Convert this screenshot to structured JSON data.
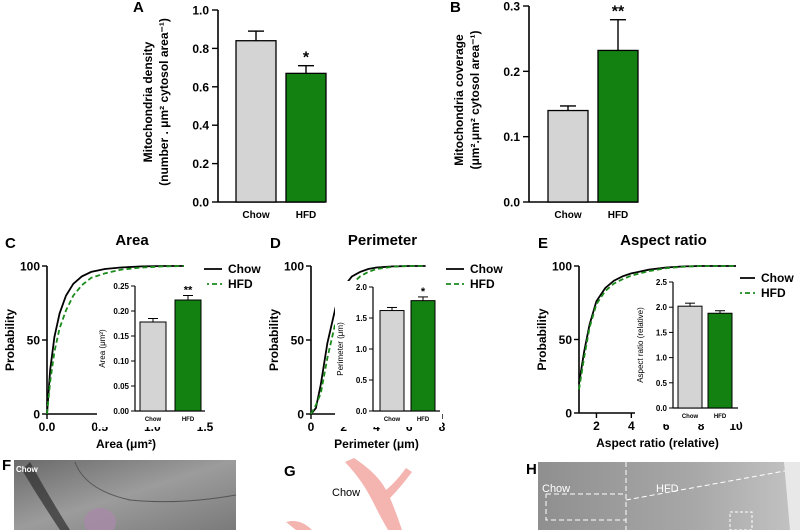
{
  "colors": {
    "chow": "#d4d4d4",
    "hfd": "#128112",
    "line_chow": "#000000",
    "line_hfd": "#1a8a1a"
  },
  "chart_data": [
    {
      "id": "A",
      "panel_label": "A",
      "type": "bar",
      "title": "",
      "categories": [
        "Chow",
        "HFD"
      ],
      "values": [
        0.84,
        0.67
      ],
      "errors": [
        0.05,
        0.04
      ],
      "significance": [
        "",
        "*"
      ],
      "ylabel_line1": "Mitochondria density",
      "ylabel_line2": "(number . μm² cytosol area⁻¹)",
      "xlabel": "",
      "ylim": [
        0,
        1.0
      ],
      "y_ticks": [
        "0.0",
        "0.2",
        "0.4",
        "0.6",
        "0.8",
        "1.0"
      ]
    },
    {
      "id": "B",
      "panel_label": "B",
      "type": "bar",
      "title": "",
      "categories": [
        "Chow",
        "HFD"
      ],
      "values": [
        0.14,
        0.232
      ],
      "errors": [
        0.007,
        0.047
      ],
      "significance": [
        "",
        "**"
      ],
      "ylabel_line1": "Mitochondria coverage",
      "ylabel_line2": "(μm².μm² cytosol area⁻¹)",
      "xlabel": "",
      "ylim": [
        0,
        0.3
      ],
      "y_ticks": [
        "0.0",
        "0.1",
        "0.2",
        "0.3"
      ]
    },
    {
      "id": "C",
      "panel_label": "C",
      "type": "line",
      "title": "Area",
      "xlabel": "Area (μm²)",
      "ylabel": "Probability",
      "xlim": [
        0,
        1.5
      ],
      "ylim": [
        0,
        100
      ],
      "x_ticks": [
        "0.0",
        "0.5",
        "1.0",
        "1.5"
      ],
      "y_ticks": [
        "0",
        "50",
        "100"
      ],
      "legend": "top-right",
      "series": [
        {
          "name": "Chow",
          "x": [
            0,
            0.03,
            0.07,
            0.12,
            0.18,
            0.25,
            0.33,
            0.42,
            0.55,
            0.7,
            0.9,
            1.1,
            1.3
          ],
          "y": [
            0,
            30,
            52,
            68,
            80,
            88,
            93,
            96,
            98,
            99,
            99.7,
            100,
            100
          ]
        },
        {
          "name": "HFD",
          "x": [
            0,
            0.03,
            0.07,
            0.12,
            0.18,
            0.25,
            0.33,
            0.42,
            0.55,
            0.7,
            0.9,
            1.1,
            1.3
          ],
          "y": [
            0,
            22,
            42,
            58,
            70,
            80,
            87,
            92,
            95,
            97.5,
            99,
            99.7,
            100
          ]
        }
      ],
      "inset": {
        "categories": [
          "Chow",
          "HFD"
        ],
        "values": [
          0.178,
          0.222
        ],
        "errors": [
          0.007,
          0.009
        ],
        "significance": [
          "",
          "**"
        ],
        "ylabel": "Area (μm²)",
        "ylim": [
          0,
          0.25
        ],
        "y_ticks": [
          "0.00",
          "0.05",
          "0.10",
          "0.15",
          "0.20",
          "0.25"
        ]
      }
    },
    {
      "id": "D",
      "panel_label": "D",
      "type": "line",
      "title": "Perimeter",
      "xlabel": "Perimeter (μm)",
      "ylabel": "Probability",
      "xlim": [
        0,
        8
      ],
      "ylim": [
        0,
        100
      ],
      "x_ticks": [
        "0",
        "2",
        "4",
        "6",
        "8"
      ],
      "y_ticks": [
        "0",
        "50",
        "100"
      ],
      "legend": "top-right",
      "series": [
        {
          "name": "Chow",
          "x": [
            0,
            0.3,
            0.6,
            1.0,
            1.5,
            2.0,
            2.5,
            3.0,
            3.5,
            4.0,
            5.0,
            6.0,
            7.0
          ],
          "y": [
            0,
            4,
            20,
            48,
            72,
            86,
            93,
            96,
            98,
            99,
            99.7,
            100,
            100
          ]
        },
        {
          "name": "HFD",
          "x": [
            0,
            0.3,
            0.6,
            1.0,
            1.5,
            2.0,
            2.5,
            3.0,
            3.5,
            4.0,
            5.0,
            6.0,
            7.0
          ],
          "y": [
            0,
            6,
            14,
            38,
            62,
            78,
            88,
            93,
            96,
            98,
            99.5,
            100,
            100
          ]
        }
      ],
      "inset": {
        "categories": [
          "Chow",
          "HFD"
        ],
        "values": [
          1.62,
          1.78
        ],
        "errors": [
          0.05,
          0.06
        ],
        "significance": [
          "",
          "*"
        ],
        "ylabel": "Perimeter (μm)",
        "ylim": [
          0,
          2.0
        ],
        "y_ticks": [
          "0.0",
          "0.5",
          "1.0",
          "1.5",
          "2.0"
        ]
      }
    },
    {
      "id": "E",
      "panel_label": "E",
      "type": "line",
      "title": "Aspect ratio",
      "xlabel": "Aspect ratio (relative)",
      "ylabel": "Probability",
      "xlim": [
        1,
        10
      ],
      "ylim": [
        0,
        100
      ],
      "x_ticks": [
        "2",
        "4",
        "6",
        "8",
        "10"
      ],
      "y_ticks": [
        "0",
        "50",
        "100"
      ],
      "legend": "top-right",
      "series": [
        {
          "name": "Chow",
          "x": [
            1,
            1.3,
            1.6,
            2.0,
            2.5,
            3.0,
            3.5,
            4.0,
            5.0,
            6.0,
            7.0,
            8.0,
            10.0
          ],
          "y": [
            20,
            42,
            60,
            76,
            85,
            90,
            93,
            95,
            97.5,
            99,
            99.7,
            100,
            100
          ]
        },
        {
          "name": "HFD",
          "x": [
            1,
            1.3,
            1.6,
            2.0,
            2.5,
            3.0,
            3.5,
            4.0,
            5.0,
            6.0,
            7.0,
            8.0,
            10.0
          ],
          "y": [
            16,
            38,
            58,
            74,
            83,
            88,
            91,
            93.5,
            96.5,
            98.5,
            99.5,
            100,
            100
          ]
        }
      ],
      "inset": {
        "categories": [
          "Chow",
          "HFD"
        ],
        "values": [
          2.02,
          1.88
        ],
        "errors": [
          0.06,
          0.05
        ],
        "significance": [
          "",
          ""
        ],
        "ylabel": "Aspect ratio (relative)",
        "ylim": [
          0,
          2.5
        ],
        "y_ticks": [
          "0.0",
          "0.5",
          "1.0",
          "1.5",
          "2.0",
          "2.5"
        ]
      }
    }
  ],
  "image_panels": {
    "F": {
      "panel_label": "F",
      "caption": "Chow"
    },
    "G": {
      "panel_label": "G",
      "caption": "Chow"
    },
    "H": {
      "panel_label": "H",
      "caption_chow": "Chow",
      "caption_hfd": "HFD"
    }
  }
}
